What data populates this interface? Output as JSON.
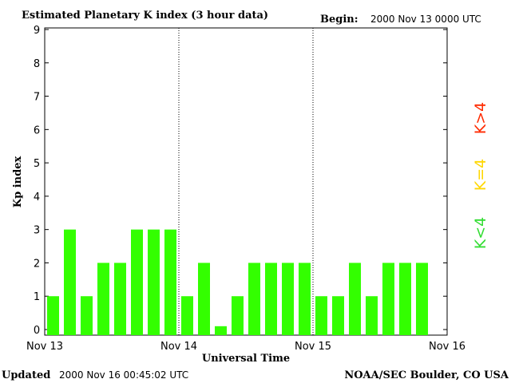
{
  "header": {
    "title": "Estimated Planetary K index (3 hour data)",
    "begin_label": "Begin:",
    "begin_value": "2000 Nov 13 0000 UTC"
  },
  "footer": {
    "updated_label": "Updated",
    "updated_value": "2000 Nov 16 00:45:02 UTC",
    "credit": "NOAA/SEC Boulder, CO USA"
  },
  "legend": [
    {
      "label": "K>4",
      "color": "#ff2a00"
    },
    {
      "label": "K=4",
      "color": "#ffd700"
    },
    {
      "label": "K<4",
      "color": "#33dd33"
    }
  ],
  "chart_data": {
    "type": "bar",
    "title": "Estimated Planetary K index (3 hour data)",
    "xlabel": "Universal Time",
    "ylabel": "Kp index",
    "ylim": [
      0,
      9
    ],
    "yticks": [
      "0",
      "1",
      "2",
      "3",
      "4",
      "5",
      "6",
      "7",
      "8",
      "9"
    ],
    "xticks": [
      "Nov 13",
      "Nov 14",
      "Nov 15",
      "Nov 16"
    ],
    "day_separators": true,
    "bar_color": "#33ff00",
    "values": [
      1,
      3,
      1,
      2,
      2,
      3,
      3,
      3,
      1,
      2,
      0.1,
      1,
      2,
      2,
      2,
      2,
      1,
      1,
      2,
      1,
      2,
      2,
      2
    ]
  }
}
